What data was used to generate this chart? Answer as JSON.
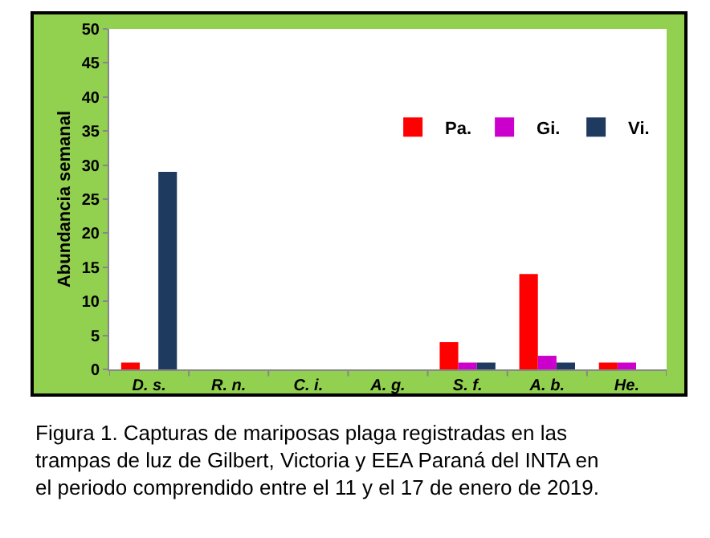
{
  "chart_data": {
    "type": "bar",
    "ylabel": "Abundancia semanal",
    "categories": [
      "D. s.",
      "R. n.",
      "C. i.",
      "A. g.",
      "S. f.",
      "A. b.",
      "He."
    ],
    "series": [
      {
        "name": "Pa.",
        "color": "#ff0000",
        "values": [
          1,
          0,
          0,
          0,
          4,
          14,
          1
        ]
      },
      {
        "name": "Gi.",
        "color": "#cc00cc",
        "values": [
          0,
          0,
          0,
          0,
          1,
          2,
          1
        ]
      },
      {
        "name": "Vi.",
        "color": "#1f3a5f",
        "values": [
          29,
          0,
          0,
          0,
          1,
          1,
          0
        ]
      }
    ],
    "ylim": [
      0,
      50
    ],
    "yticks": [
      0,
      5,
      10,
      15,
      20,
      25,
      30,
      35,
      40,
      45,
      50
    ],
    "legend": "top right",
    "annotations": [
      "Figura 1. Capturas de mariposas plaga registradas en las\ntrampas de luz de Gilbert, Victoria y EEA Paraná del INTA en\nel periodo comprendido entre el 11 y el 17 de enero de 2019."
    ]
  }
}
